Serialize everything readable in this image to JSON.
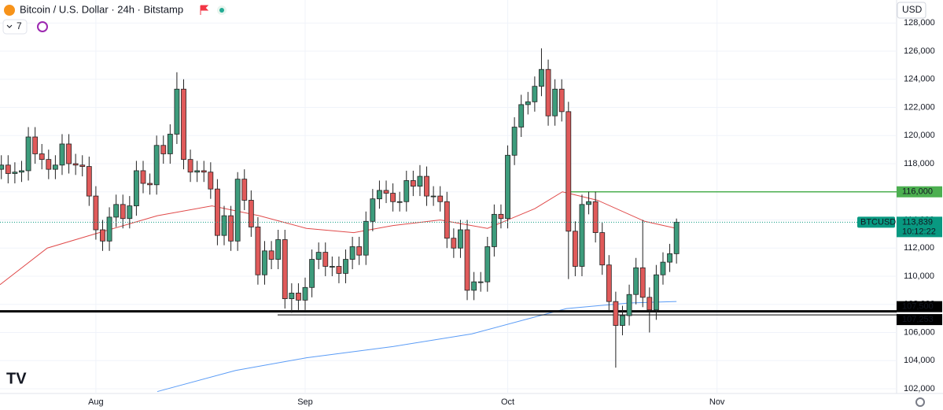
{
  "header": {
    "symbol": "Bitcoin / U.S. Dollar · 24h · Bitstamp",
    "indicator_count": "7",
    "currency": "USD"
  },
  "chart_data": {
    "type": "candlestick",
    "ylim": [
      101664,
      129636
    ],
    "yticks": [
      {
        "value": 102000,
        "label": "102,000"
      },
      {
        "value": 104000,
        "label": "104,000"
      },
      {
        "value": 106000,
        "label": "106,000"
      },
      {
        "value": 108000,
        "label": "108,000"
      },
      {
        "value": 110000,
        "label": "110,000"
      },
      {
        "value": 112000,
        "label": "112,000"
      },
      {
        "value": 114000,
        "label": "114,000"
      },
      {
        "value": 116000,
        "label": "116,000"
      },
      {
        "value": 118000,
        "label": "118,000"
      },
      {
        "value": 120000,
        "label": "120,000"
      },
      {
        "value": 122000,
        "label": "122,000"
      },
      {
        "value": 124000,
        "label": "124,000"
      },
      {
        "value": 126000,
        "label": "126,000"
      },
      {
        "value": 128000,
        "label": "128,000"
      }
    ],
    "xlim": [
      -0.2,
      132.6
    ],
    "xticks": [
      {
        "value": 14,
        "label": "Aug"
      },
      {
        "value": 45,
        "label": "Sep"
      },
      {
        "value": 75,
        "label": "Oct"
      },
      {
        "value": 106,
        "label": "Nov"
      }
    ],
    "grid": true,
    "up_color": "#3d9c7c",
    "down_color": "#e05a5a",
    "open": [
      117600,
      117900,
      117300,
      117400,
      117500,
      119900,
      118700,
      118300,
      117600,
      117900,
      119400,
      118000,
      117900,
      117800,
      115700,
      113300,
      112500,
      114200,
      115100,
      114100,
      115000,
      117500,
      116600,
      116500,
      119300,
      118700,
      120100,
      123300,
      118300,
      117400,
      117500,
      117400,
      116200,
      112900,
      114300,
      112500,
      116900,
      115400,
      113500,
      110100,
      111800,
      111200,
      112600,
      108400,
      108800,
      108300,
      109200,
      111200,
      111700,
      110700,
      110700,
      110200,
      111200,
      112100,
      111500,
      113900,
      115500,
      116100,
      115900,
      115300,
      115300,
      116800,
      116400,
      117100,
      115700,
      115700,
      115300,
      112700,
      112000,
      113300,
      109000,
      109600,
      109600,
      112100,
      114400,
      114100,
      118600,
      120600,
      122200,
      122400,
      123500,
      124700,
      121400,
      123300,
      121700,
      113200,
      110700,
      115100,
      115300,
      113100,
      110800,
      108200,
      106500,
      107200,
      108700,
      110600,
      108500,
      107600,
      110100,
      111000,
      111600
    ],
    "high": [
      118600,
      118600,
      118100,
      118200,
      120600,
      120600,
      119400,
      119000,
      118600,
      120100,
      120100,
      118700,
      118600,
      118500,
      116400,
      114000,
      114900,
      115800,
      115800,
      115700,
      118200,
      118200,
      117300,
      120000,
      120000,
      120800,
      124500,
      124000,
      119000,
      118200,
      118200,
      118100,
      116900,
      115000,
      115000,
      117400,
      117600,
      116100,
      114200,
      112500,
      112500,
      113300,
      113300,
      109500,
      109500,
      109900,
      111900,
      112400,
      112400,
      111400,
      111400,
      111900,
      112800,
      112800,
      114600,
      116200,
      116800,
      116800,
      116600,
      116000,
      117500,
      117500,
      117900,
      117800,
      116400,
      116400,
      116000,
      113400,
      114000,
      114000,
      110300,
      110300,
      112800,
      115100,
      115100,
      119300,
      121300,
      122900,
      123100,
      124200,
      126200,
      125400,
      124000,
      124000,
      122400,
      113900,
      115800,
      116000,
      116000,
      113800,
      111500,
      108900,
      107900,
      109400,
      111300,
      114000,
      109200,
      110800,
      111700,
      112300,
      114100
    ],
    "low": [
      116900,
      116600,
      116600,
      116700,
      116800,
      118000,
      117600,
      116900,
      116900,
      117200,
      117300,
      117200,
      117100,
      115000,
      112600,
      111800,
      111800,
      113500,
      113400,
      113400,
      114300,
      115900,
      115800,
      115800,
      118000,
      118000,
      119400,
      117600,
      116700,
      116700,
      116700,
      115500,
      112200,
      112200,
      111800,
      111800,
      114700,
      112800,
      109400,
      109400,
      110500,
      110500,
      107700,
      107400,
      107600,
      107600,
      108500,
      110500,
      110000,
      110000,
      109500,
      109500,
      110500,
      110800,
      110800,
      113200,
      114800,
      115200,
      114600,
      114600,
      114600,
      115700,
      115700,
      115000,
      115000,
      114600,
      112000,
      111300,
      111300,
      108300,
      108300,
      108900,
      108900,
      111400,
      113400,
      113400,
      117900,
      119900,
      121500,
      121700,
      122800,
      120700,
      120700,
      121000,
      109800,
      110000,
      110000,
      114400,
      112400,
      110100,
      107500,
      103500,
      105800,
      106500,
      108000,
      107800,
      106000,
      106900,
      109400,
      110300,
      110900
    ],
    "close": [
      117900,
      117300,
      117400,
      117500,
      119900,
      118700,
      118300,
      117600,
      117900,
      119400,
      118000,
      117900,
      117800,
      115700,
      113300,
      112500,
      114200,
      115100,
      114100,
      115000,
      117500,
      116600,
      116500,
      119300,
      118700,
      120100,
      123300,
      118300,
      117400,
      117500,
      117400,
      116200,
      112900,
      114300,
      112500,
      116900,
      115400,
      113500,
      110100,
      111800,
      111200,
      112600,
      108400,
      108800,
      108300,
      109200,
      111200,
      111700,
      110700,
      110700,
      110200,
      111200,
      112100,
      111500,
      113900,
      115500,
      116100,
      115900,
      115300,
      115300,
      116800,
      116400,
      117100,
      115700,
      115700,
      115300,
      112700,
      112000,
      113300,
      109000,
      109600,
      109600,
      112100,
      114400,
      114100,
      118600,
      120600,
      122200,
      122400,
      123500,
      124700,
      121400,
      123300,
      121700,
      113200,
      110700,
      115100,
      115300,
      113100,
      110800,
      108200,
      106500,
      107200,
      108700,
      110600,
      108500,
      107600,
      110100,
      111000,
      111600,
      113839
    ],
    "series": [
      {
        "color": "#e04a4a",
        "x": [
          -0.2,
          6.8,
          13.8,
          23.1,
          31.2,
          38.2,
          45.2,
          52.2,
          58.0,
          65.0,
          72.0,
          79.0,
          83.1,
          88.3,
          95.3,
          100
        ],
        "values": [
          109400,
          112000,
          113000,
          114300,
          115000,
          114300,
          113400,
          113100,
          113600,
          114000,
          113400,
          114800,
          116000,
          115400,
          113900,
          113400
        ]
      },
      {
        "color": "#5b9cf6",
        "x": [
          23.1,
          34.7,
          45.2,
          58.0,
          69.7,
          79.0,
          83.7,
          93.0,
          100
        ],
        "values": [
          101800,
          103300,
          104200,
          105000,
          105900,
          107100,
          107700,
          108100,
          108200
        ]
      }
    ],
    "hlines": [
      {
        "value": 116000,
        "label": "116,000",
        "color": "#4caf50"
      },
      {
        "value": 107500,
        "label": "107,500",
        "color": "#000000"
      },
      {
        "value": 107253,
        "label": "107,253",
        "color": "#000000"
      }
    ],
    "last": {
      "name": "BTCUSD",
      "value": 113839,
      "label": "113,839",
      "countdown": "10:12:22",
      "color": "#089981"
    }
  }
}
